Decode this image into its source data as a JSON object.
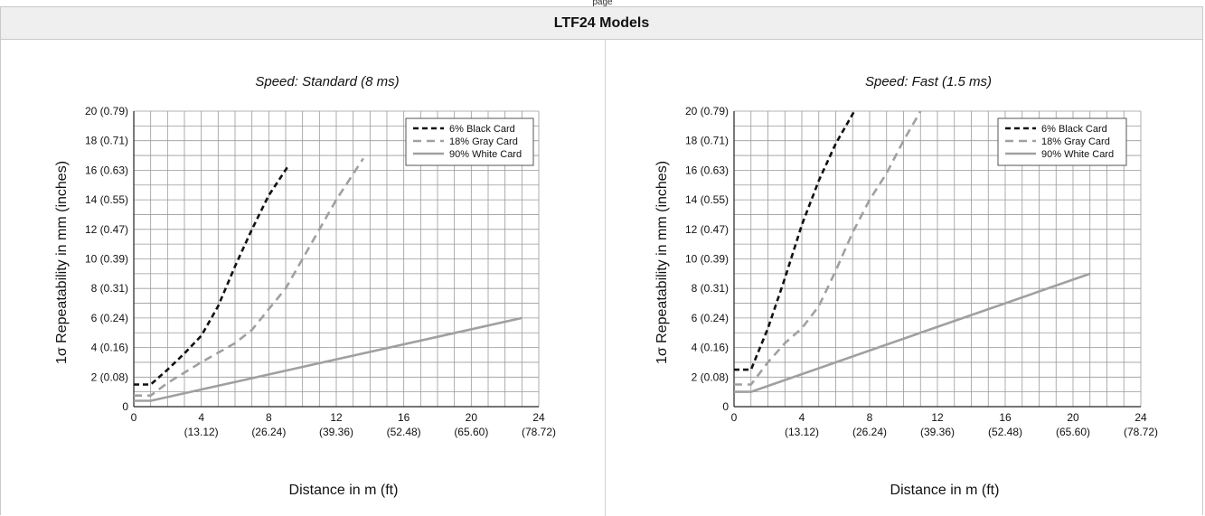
{
  "page_label": "page",
  "header": {
    "title": "LTF24 Models"
  },
  "colors": {
    "black_card": "#111111",
    "gray_card": "#a0a0a0",
    "white_card": "#a0a0a0",
    "grid": "#9a9a9a"
  },
  "chart_data": [
    {
      "type": "line",
      "title": "Speed: Standard (8 ms)",
      "xlabel": "Distance in m (ft)",
      "ylabel": "1σ Repeatability in mm (inches)",
      "xlim": [
        0,
        24
      ],
      "ylim": [
        0,
        20
      ],
      "x_ticks": [
        {
          "value": 0,
          "label": "0",
          "sub": ""
        },
        {
          "value": 4,
          "label": "4",
          "sub": "(13.12)"
        },
        {
          "value": 8,
          "label": "8",
          "sub": "(26.24)"
        },
        {
          "value": 12,
          "label": "12",
          "sub": "(39.36)"
        },
        {
          "value": 16,
          "label": "16",
          "sub": "(52.48)"
        },
        {
          "value": 20,
          "label": "20",
          "sub": "(65.60)"
        },
        {
          "value": 24,
          "label": "24",
          "sub": "(78.72)"
        }
      ],
      "y_ticks": [
        {
          "value": 0,
          "label": "0"
        },
        {
          "value": 2,
          "label": "2 (0.08)"
        },
        {
          "value": 4,
          "label": "4 (0.16)"
        },
        {
          "value": 6,
          "label": "6 (0.24)"
        },
        {
          "value": 8,
          "label": "8 (0.31)"
        },
        {
          "value": 10,
          "label": "10 (0.39)"
        },
        {
          "value": 12,
          "label": "12 (0.47)"
        },
        {
          "value": 14,
          "label": "14 (0.55)"
        },
        {
          "value": 16,
          "label": "16 (0.63)"
        },
        {
          "value": 18,
          "label": "18 (0.71)"
        },
        {
          "value": 20,
          "label": "20 (0.79)"
        }
      ],
      "grid": true,
      "legend": "top-right",
      "series": [
        {
          "name": "6% Black Card",
          "style": "black-dash",
          "points": [
            [
              0,
              1.5
            ],
            [
              1,
              1.5
            ],
            [
              2,
              2.5
            ],
            [
              3,
              3.6
            ],
            [
              4,
              4.8
            ],
            [
              5,
              6.8
            ],
            [
              6,
              9.5
            ],
            [
              7,
              12
            ],
            [
              8,
              14.3
            ],
            [
              9.1,
              16.2
            ]
          ]
        },
        {
          "name": "18% Gray Card",
          "style": "gray-dash",
          "points": [
            [
              0,
              0.75
            ],
            [
              1,
              0.75
            ],
            [
              2,
              1.6
            ],
            [
              4,
              3
            ],
            [
              6,
              4.3
            ],
            [
              7,
              5.2
            ],
            [
              8,
              6.6
            ],
            [
              9,
              8
            ],
            [
              10,
              10
            ],
            [
              11,
              12
            ],
            [
              12,
              14
            ],
            [
              13.6,
              16.8
            ]
          ]
        },
        {
          "name": "90% White Card",
          "style": "gray-solid",
          "points": [
            [
              0,
              0.4
            ],
            [
              1,
              0.4
            ],
            [
              23,
              6
            ]
          ]
        }
      ]
    },
    {
      "type": "line",
      "title": "Speed: Fast (1.5 ms)",
      "xlabel": "Distance in m (ft)",
      "ylabel": "1σ Repeatability in mm (inches)",
      "xlim": [
        0,
        24
      ],
      "ylim": [
        0,
        20
      ],
      "x_ticks": [
        {
          "value": 0,
          "label": "0",
          "sub": ""
        },
        {
          "value": 4,
          "label": "4",
          "sub": "(13.12)"
        },
        {
          "value": 8,
          "label": "8",
          "sub": "(26.24)"
        },
        {
          "value": 12,
          "label": "12",
          "sub": "(39.36)"
        },
        {
          "value": 16,
          "label": "16",
          "sub": "(52.48)"
        },
        {
          "value": 20,
          "label": "20",
          "sub": "(65.60)"
        },
        {
          "value": 24,
          "label": "24",
          "sub": "(78.72)"
        }
      ],
      "y_ticks": [
        {
          "value": 0,
          "label": "0"
        },
        {
          "value": 2,
          "label": "2 (0.08)"
        },
        {
          "value": 4,
          "label": "4 (0.16)"
        },
        {
          "value": 6,
          "label": "6 (0.24)"
        },
        {
          "value": 8,
          "label": "8 (0.31)"
        },
        {
          "value": 10,
          "label": "10 (0.39)"
        },
        {
          "value": 12,
          "label": "12 (0.47)"
        },
        {
          "value": 14,
          "label": "14 (0.55)"
        },
        {
          "value": 16,
          "label": "16 (0.63)"
        },
        {
          "value": 18,
          "label": "18 (0.71)"
        },
        {
          "value": 20,
          "label": "20 (0.79)"
        }
      ],
      "grid": true,
      "legend": "top-right",
      "series": [
        {
          "name": "6% Black Card",
          "style": "black-dash",
          "points": [
            [
              0,
              2.5
            ],
            [
              1,
              2.5
            ],
            [
              2,
              5.3
            ],
            [
              3,
              8.7
            ],
            [
              4,
              12.3
            ],
            [
              5,
              15.3
            ],
            [
              6,
              17.8
            ],
            [
              7.1,
              20
            ]
          ]
        },
        {
          "name": "18% Gray Card",
          "style": "gray-dash",
          "points": [
            [
              0,
              1.5
            ],
            [
              1,
              1.5
            ],
            [
              2,
              3
            ],
            [
              3,
              4.3
            ],
            [
              4,
              5.3
            ],
            [
              5,
              6.8
            ],
            [
              6,
              9.2
            ],
            [
              7,
              11.8
            ],
            [
              8,
              14
            ],
            [
              9,
              15.8
            ],
            [
              10,
              18
            ],
            [
              11,
              20
            ]
          ]
        },
        {
          "name": "90% White Card",
          "style": "gray-solid",
          "points": [
            [
              0,
              1
            ],
            [
              1,
              1
            ],
            [
              21,
              9
            ]
          ]
        }
      ]
    }
  ]
}
